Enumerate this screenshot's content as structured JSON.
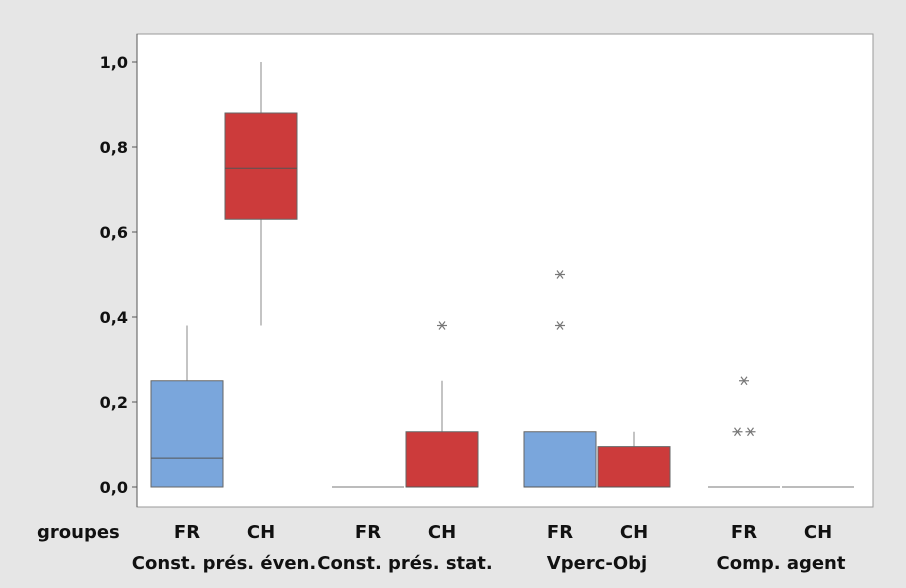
{
  "colors": {
    "frame": "#e6e6e6",
    "plot_bg": "#ffffff",
    "FR": "#7aa6dc",
    "CH": "#cc3b3b",
    "whisker": "#8a8a8a"
  },
  "chart_data": {
    "type": "box",
    "title": "",
    "xlabel": "",
    "ylabel": "",
    "ylim": [
      0,
      1.0
    ],
    "yticks": [
      {
        "value": 0.0,
        "label": "0,0"
      },
      {
        "value": 0.2,
        "label": "0,2"
      },
      {
        "value": 0.4,
        "label": "0,4"
      },
      {
        "value": 0.6,
        "label": "0,6"
      },
      {
        "value": 0.8,
        "label": "0,8"
      },
      {
        "value": 1.0,
        "label": "1,0"
      }
    ],
    "grid": false,
    "row_label": "groupes",
    "groups": [
      "Const. prés. éven.",
      "Const. prés. stat.",
      "Vperc-Obj",
      "Comp. agent"
    ],
    "subgroups": [
      "FR",
      "CH"
    ],
    "boxes": [
      {
        "group": "Const. prés. éven.",
        "sub": "FR",
        "min": 0.0,
        "q1": 0.0,
        "median": 0.068,
        "q3": 0.25,
        "max": 0.38,
        "outliers": []
      },
      {
        "group": "Const. prés. éven.",
        "sub": "CH",
        "min": 0.38,
        "q1": 0.63,
        "median": 0.75,
        "q3": 0.88,
        "max": 1.0,
        "outliers": []
      },
      {
        "group": "Const. prés. stat.",
        "sub": "FR",
        "min": 0.0,
        "q1": 0.0,
        "median": 0.0,
        "q3": 0.0,
        "max": 0.0,
        "outliers": []
      },
      {
        "group": "Const. prés. stat.",
        "sub": "CH",
        "min": 0.0,
        "q1": 0.0,
        "median": 0.0,
        "q3": 0.13,
        "max": 0.25,
        "outliers": [
          0.38
        ]
      },
      {
        "group": "Vperc-Obj",
        "sub": "FR",
        "min": 0.0,
        "q1": 0.0,
        "median": 0.0,
        "q3": 0.13,
        "max": 0.13,
        "outliers": [
          0.38,
          0.5
        ]
      },
      {
        "group": "Vperc-Obj",
        "sub": "CH",
        "min": 0.0,
        "q1": 0.0,
        "median": 0.0,
        "q3": 0.095,
        "max": 0.13,
        "outliers": []
      },
      {
        "group": "Comp. agent",
        "sub": "FR",
        "min": 0.0,
        "q1": 0.0,
        "median": 0.0,
        "q3": 0.0,
        "max": 0.0,
        "outliers": [
          0.13,
          0.13,
          0.25
        ]
      },
      {
        "group": "Comp. agent",
        "sub": "CH",
        "min": 0.0,
        "q1": 0.0,
        "median": 0.0,
        "q3": 0.0,
        "max": 0.0,
        "outliers": []
      }
    ]
  }
}
